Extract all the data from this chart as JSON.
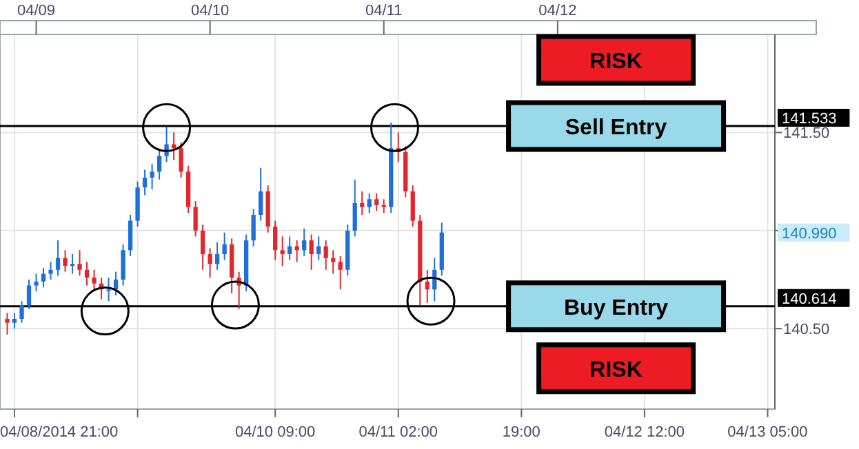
{
  "chart_data": {
    "type": "candlestick",
    "x": [
      "2014-04-08T20:00",
      "2014-04-08T21:00",
      "2014-04-08T22:00",
      "2014-04-08T23:00",
      "2014-04-09T00:00",
      "2014-04-09T01:00",
      "2014-04-09T02:00",
      "2014-04-09T03:00",
      "2014-04-09T04:00",
      "2014-04-09T05:00",
      "2014-04-09T06:00",
      "2014-04-09T07:00",
      "2014-04-09T08:00",
      "2014-04-09T09:00",
      "2014-04-09T10:00",
      "2014-04-09T11:00",
      "2014-04-09T12:00",
      "2014-04-09T13:00",
      "2014-04-09T14:00",
      "2014-04-09T15:00",
      "2014-04-09T16:00",
      "2014-04-09T17:00",
      "2014-04-09T18:00",
      "2014-04-09T19:00",
      "2014-04-09T20:00",
      "2014-04-09T21:00",
      "2014-04-09T22:00",
      "2014-04-09T23:00",
      "2014-04-10T00:00",
      "2014-04-10T01:00",
      "2014-04-10T02:00",
      "2014-04-10T03:00",
      "2014-04-10T04:00",
      "2014-04-10T05:00",
      "2014-04-10T06:00",
      "2014-04-10T07:00",
      "2014-04-10T08:00",
      "2014-04-10T09:00",
      "2014-04-10T10:00",
      "2014-04-10T11:00",
      "2014-04-10T12:00",
      "2014-04-10T13:00",
      "2014-04-10T14:00",
      "2014-04-10T15:00",
      "2014-04-10T16:00",
      "2014-04-10T17:00",
      "2014-04-10T18:00",
      "2014-04-10T19:00",
      "2014-04-10T20:00",
      "2014-04-10T21:00",
      "2014-04-10T22:00",
      "2014-04-10T23:00",
      "2014-04-11T00:00",
      "2014-04-11T01:00",
      "2014-04-11T02:00",
      "2014-04-11T03:00",
      "2014-04-11T04:00",
      "2014-04-11T05:00",
      "2014-04-11T06:00",
      "2014-04-11T07:00",
      "2014-04-11T08:00"
    ],
    "ohlc": [
      [
        140.55,
        140.58,
        140.47,
        140.53
      ],
      [
        140.53,
        140.58,
        140.5,
        140.55
      ],
      [
        140.55,
        140.64,
        140.53,
        140.62
      ],
      [
        140.62,
        140.75,
        140.6,
        140.72
      ],
      [
        140.72,
        140.78,
        140.69,
        140.74
      ],
      [
        140.74,
        140.81,
        140.71,
        140.78
      ],
      [
        140.78,
        140.84,
        140.75,
        140.8
      ],
      [
        140.8,
        140.95,
        140.77,
        140.86
      ],
      [
        140.86,
        140.9,
        140.79,
        140.82
      ],
      [
        140.82,
        140.88,
        140.78,
        140.83
      ],
      [
        140.83,
        140.9,
        140.77,
        140.8
      ],
      [
        140.8,
        140.84,
        140.72,
        140.76
      ],
      [
        140.76,
        140.8,
        140.69,
        140.73
      ],
      [
        140.73,
        140.76,
        140.65,
        140.7
      ],
      [
        140.7,
        140.76,
        140.64,
        140.7
      ],
      [
        140.7,
        140.79,
        140.67,
        140.75
      ],
      [
        140.75,
        140.93,
        140.72,
        140.9
      ],
      [
        140.9,
        141.08,
        140.87,
        141.05
      ],
      [
        141.05,
        141.25,
        141.02,
        141.22
      ],
      [
        141.22,
        141.31,
        141.18,
        141.27
      ],
      [
        141.27,
        141.34,
        141.21,
        141.3
      ],
      [
        141.3,
        141.41,
        141.26,
        141.38
      ],
      [
        141.38,
        141.53,
        141.35,
        141.44
      ],
      [
        141.44,
        141.5,
        141.36,
        141.42
      ],
      [
        141.42,
        141.45,
        141.27,
        141.3
      ],
      [
        141.3,
        141.33,
        141.09,
        141.12
      ],
      [
        141.12,
        141.15,
        140.97,
        141.0
      ],
      [
        141.0,
        141.03,
        140.8,
        140.88
      ],
      [
        140.88,
        140.91,
        140.76,
        140.83
      ],
      [
        140.83,
        140.94,
        140.8,
        140.88
      ],
      [
        140.88,
        140.99,
        140.85,
        140.93
      ],
      [
        140.93,
        140.96,
        140.68,
        140.76
      ],
      [
        140.76,
        140.79,
        140.6,
        140.72
      ],
      [
        140.72,
        140.98,
        140.69,
        140.95
      ],
      [
        140.95,
        141.11,
        140.92,
        141.08
      ],
      [
        141.08,
        141.32,
        141.05,
        141.2
      ],
      [
        141.2,
        141.23,
        140.99,
        141.02
      ],
      [
        141.02,
        141.05,
        140.85,
        140.9
      ],
      [
        140.9,
        140.97,
        140.82,
        140.88
      ],
      [
        140.88,
        140.97,
        140.85,
        140.92
      ],
      [
        140.92,
        140.95,
        140.84,
        140.9
      ],
      [
        140.9,
        141.01,
        140.87,
        140.95
      ],
      [
        140.95,
        140.98,
        140.8,
        140.88
      ],
      [
        140.88,
        140.97,
        140.85,
        140.92
      ],
      [
        140.92,
        140.95,
        140.8,
        140.86
      ],
      [
        140.86,
        140.9,
        140.78,
        140.84
      ],
      [
        140.84,
        140.87,
        140.7,
        140.8
      ],
      [
        140.8,
        141.03,
        140.77,
        141.0
      ],
      [
        141.0,
        141.26,
        140.97,
        141.14
      ],
      [
        141.14,
        141.2,
        141.08,
        141.12
      ],
      [
        141.12,
        141.19,
        141.09,
        141.16
      ],
      [
        141.16,
        141.19,
        141.1,
        141.13
      ],
      [
        141.13,
        141.16,
        141.09,
        141.12
      ],
      [
        141.12,
        141.55,
        141.09,
        141.42
      ],
      [
        141.42,
        141.5,
        141.35,
        141.4
      ],
      [
        141.4,
        141.43,
        141.17,
        141.2
      ],
      [
        141.2,
        141.23,
        141.02,
        141.05
      ],
      [
        141.05,
        141.08,
        140.62,
        140.74
      ],
      [
        140.74,
        140.8,
        140.63,
        140.7
      ],
      [
        140.7,
        140.86,
        140.64,
        140.8
      ],
      [
        140.8,
        141.04,
        140.77,
        140.99
      ]
    ],
    "colors": [
      "#e3262e",
      "#1e6fd9",
      "#1e6fd9",
      "#1e6fd9",
      "#1e6fd9",
      "#1e6fd9",
      "#1e6fd9",
      "#1e6fd9",
      "#e3262e",
      "#1e6fd9",
      "#e3262e",
      "#e3262e",
      "#e3262e",
      "#e3262e",
      "#1e6fd9",
      "#1e6fd9",
      "#1e6fd9",
      "#1e6fd9",
      "#1e6fd9",
      "#1e6fd9",
      "#1e6fd9",
      "#1e6fd9",
      "#1e6fd9",
      "#e3262e",
      "#e3262e",
      "#e3262e",
      "#e3262e",
      "#e3262e",
      "#e3262e",
      "#1e6fd9",
      "#1e6fd9",
      "#e3262e",
      "#e3262e",
      "#1e6fd9",
      "#1e6fd9",
      "#1e6fd9",
      "#e3262e",
      "#e3262e",
      "#e3262e",
      "#1e6fd9",
      "#e3262e",
      "#1e6fd9",
      "#e3262e",
      "#1e6fd9",
      "#e3262e",
      "#e3262e",
      "#e3262e",
      "#1e6fd9",
      "#1e6fd9",
      "#e3262e",
      "#1e6fd9",
      "#e3262e",
      "#e3262e",
      "#1e6fd9",
      "#e3262e",
      "#e3262e",
      "#e3262e",
      "#e3262e",
      "#e3262e",
      "#1e6fd9",
      "#1e6fd9"
    ],
    "series": [
      {
        "type": "scatter",
        "marker": "circle",
        "color": "#000000",
        "x": [
          "2014-04-09T09:30",
          "2014-04-09T18:00",
          "2014-04-10T03:30",
          "2014-04-11T01:30",
          "2014-04-11T06:30"
        ],
        "values": [
          140.59,
          141.525,
          140.62,
          141.525,
          140.64
        ]
      }
    ],
    "xlim": [
      "2014-04-08T19:00",
      "2014-04-13T06:00"
    ],
    "xticks": [
      {
        "value": "2014-04-08T21:00",
        "label": "04/08/2014 21:00"
      },
      {
        "value": "2014-04-09T14:00",
        "label": null
      },
      {
        "value": "2014-04-10T09:00",
        "label": "04/10 09:00"
      },
      {
        "value": "2014-04-11T02:00",
        "label": "04/11 02:00"
      },
      {
        "value": "2014-04-11T19:00",
        "label": "19:00"
      },
      {
        "value": "2014-04-12T12:00",
        "label": "04/12 12:00"
      },
      {
        "value": "2014-04-13T05:00",
        "label": "04/13 05:00"
      }
    ],
    "x2lim": [
      "2014-04-08T19:00",
      "2014-04-13T06:00"
    ],
    "x2ticks": [
      {
        "value": "2014-04-09T00:00",
        "label": "04/09"
      },
      {
        "value": "2014-04-10T00:00",
        "label": "04/10"
      },
      {
        "value": "2014-04-11T00:00",
        "label": "04/11"
      },
      {
        "value": "2014-04-12T00:00",
        "label": "04/12"
      }
    ],
    "ylim": [
      140.09,
      142.0
    ],
    "yticks": [
      {
        "value": 140.5,
        "label": "140.50"
      },
      {
        "value": 141,
        "label": null
      },
      {
        "value": 141.5,
        "label": "141.50"
      }
    ],
    "grid": true,
    "ref_lines": [
      {
        "axis": "y",
        "value": 141.533,
        "label": "141.533",
        "color": "#000000"
      },
      {
        "axis": "y",
        "value": 140.614,
        "label": "140.614",
        "color": "#000000"
      }
    ],
    "annotations": [
      {
        "text": "Sell Entry",
        "y": 141.533
      },
      {
        "text": "Buy Entry",
        "y": 140.614
      },
      "RISK",
      "RISK",
      "140.990"
    ]
  }
}
